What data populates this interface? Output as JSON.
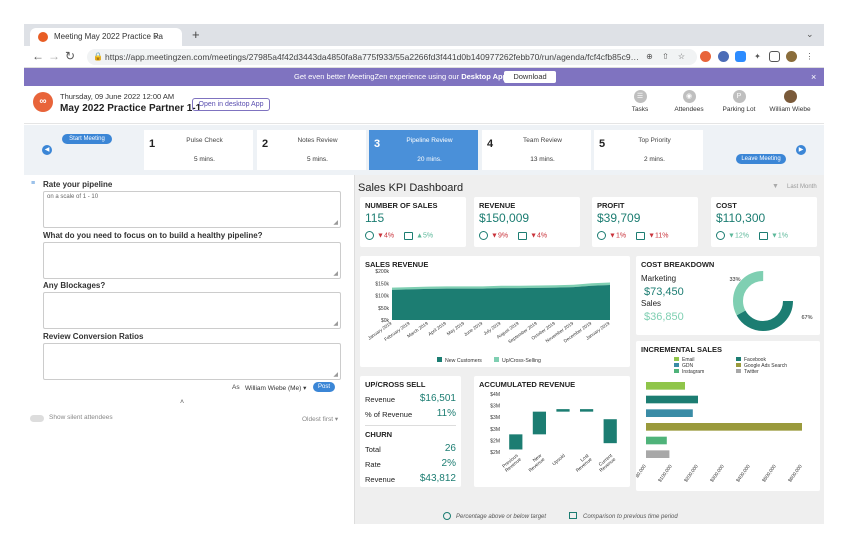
{
  "browser": {
    "tab_title": "Meeting May 2022 Practice Pa",
    "tab_close": "×",
    "new_tab": "+",
    "url": "https://app.meetingzen.com/meetings/27985a4f42d3443da4850fa8a775f933/55a2266fd3f441d0b140977262febb70/run/agenda/fcf4cfb85c9…"
  },
  "banner": {
    "text_pre": "Get even better MeetingZen experience using our ",
    "text_bold": "Desktop App",
    "button": "Download",
    "close": "×"
  },
  "header": {
    "date": "Thursday, 09 June 2022 12:00 AM",
    "title": "May 2022 Practice Partner 1-1",
    "open_desktop": "Open in desktop App",
    "actions": [
      {
        "label": "Tasks",
        "icon": "tasks-icon"
      },
      {
        "label": "Attendees",
        "icon": "attendees-icon"
      },
      {
        "label": "Parking Lot",
        "icon": "parking-lot-icon"
      },
      {
        "label": "William Wiebe",
        "icon": "user-avatar"
      }
    ]
  },
  "agenda": {
    "start": "Start Meeting",
    "leave": "Leave Meeting",
    "items": [
      {
        "num": "1",
        "name": "Pulse Check",
        "mins": "5 mins."
      },
      {
        "num": "2",
        "name": "Notes Review",
        "mins": "5 mins."
      },
      {
        "num": "3",
        "name": "Pipeline Review",
        "mins": "20 mins.",
        "active": true
      },
      {
        "num": "4",
        "name": "Team Review",
        "mins": "13 mins."
      },
      {
        "num": "5",
        "name": "Top Priority",
        "mins": "2 mins."
      }
    ]
  },
  "form": {
    "q1": "Rate your pipeline",
    "q1_placeholder": "on a scale of 1 - 10",
    "q2": "What do you need to focus on to build a healthy pipeline?",
    "q3": "Any Blockages?",
    "q4": "Review Conversion Ratios",
    "as_label": "As",
    "as_user": "William Wiebe (Me)",
    "post": "Post",
    "silent": "Show silent attendees",
    "sort": "Oldest first"
  },
  "dashboard": {
    "title": "Sales KPI Dashboard",
    "period": "Last Month",
    "kpis": [
      {
        "label": "NUMBER OF SALES",
        "value": "115",
        "target": "4%",
        "target_dir": "down",
        "prev": "5%",
        "prev_dir": "up"
      },
      {
        "label": "REVENUE",
        "value": "$150,009",
        "target": "9%",
        "target_dir": "down",
        "prev": "4%",
        "prev_dir": "down"
      },
      {
        "label": "PROFIT",
        "value": "$39,709",
        "target": "1%",
        "target_dir": "down",
        "prev": "11%",
        "prev_dir": "down"
      },
      {
        "label": "COST",
        "value": "$110,300",
        "target": "12%",
        "target_dir": "up",
        "prev": "1%",
        "prev_dir": "up"
      }
    ],
    "cost_breakdown": {
      "title": "COST BREAKDOWN",
      "marketing_label": "Marketing",
      "marketing_value": "$73,450",
      "sales_label": "Sales",
      "sales_value": "$36,850"
    },
    "upcross": {
      "title": "UP/CROSS SELL",
      "revenue_label": "Revenue",
      "revenue_value": "$16,501",
      "pct_label": "% of Revenue",
      "pct_value": "11%"
    },
    "churn": {
      "title": "CHURN",
      "total_label": "Total",
      "total_value": "26",
      "rate_label": "Rate",
      "rate_value": "2%",
      "revenue_label": "Revenue",
      "revenue_value": "$43,812"
    },
    "footer": {
      "target": "Percentage above or below target",
      "previous": "Comparison to previous time period"
    }
  },
  "colors": {
    "teal": "#1c7d72",
    "light_teal": "#7fcfb2",
    "purple": "#7f73c0",
    "blue": "#4a90d9",
    "red": "#c9333b"
  },
  "chart_data": [
    {
      "type": "area",
      "title": "SALES REVENUE",
      "categories": [
        "January 2019",
        "February 2019",
        "March 2019",
        "April 2019",
        "May 2019",
        "June 2019",
        "July 2019",
        "August 2019",
        "September 2019",
        "October 2019",
        "November 2019",
        "December 2019",
        "January 2019"
      ],
      "series": [
        {
          "name": "New Customers",
          "values": [
            123,
            125,
            127,
            128,
            128,
            128,
            130,
            130,
            131,
            132,
            134,
            140,
            143
          ]
        },
        {
          "name": "Up/Cross-Selling",
          "values": [
            9,
            9,
            9,
            9,
            9,
            9,
            10,
            10,
            10,
            10,
            10,
            10,
            10
          ]
        }
      ],
      "stacked": true,
      "ytick_labels": [
        "$0k",
        "$50k",
        "$100k",
        "$150k",
        "$200k"
      ],
      "ylim": [
        0,
        200
      ]
    },
    {
      "type": "pie",
      "title": "COST BREAKDOWN",
      "labels": [
        "Marketing",
        "Sales"
      ],
      "values": [
        67,
        33
      ],
      "data_labels": [
        "67%",
        "33%"
      ],
      "donut": true
    },
    {
      "type": "bar",
      "title": "INCREMENTAL SALES",
      "orientation": "horizontal",
      "categories": [
        "Email",
        "Facebook",
        "GDN",
        "Google Ads Search",
        "Instagram",
        "Twitter"
      ],
      "values": [
        150000,
        200000,
        180000,
        600000,
        80000,
        90000
      ],
      "xtick_labels": [
        "$0,000",
        "$100,000",
        "$200,000",
        "$300,000",
        "$400,000",
        "$500,000",
        "$600,000"
      ],
      "xlim": [
        0,
        600000
      ],
      "colors": [
        "#8fc549",
        "#1c7d72",
        "#3a8ca6",
        "#9a9a3c",
        "#4fb37a",
        "#a8a8a8"
      ]
    },
    {
      "type": "bar",
      "title": "ACCUMULATED REVENUE",
      "style": "waterfall",
      "categories": [
        "Previous Revenue",
        "New Revenue",
        "Upsold",
        "Lost Revenue",
        "Current Revenue"
      ],
      "ranges": [
        [
          2.0,
          2.6
        ],
        [
          2.6,
          3.5
        ],
        [
          3.5,
          3.6
        ],
        [
          3.5,
          3.6
        ],
        [
          2.25,
          3.2
        ]
      ],
      "ytick_labels": [
        "$2M",
        "$2M",
        "$3M",
        "$3M",
        "$3M",
        "$4M"
      ],
      "ylim": [
        1.9,
        4.2
      ]
    }
  ]
}
